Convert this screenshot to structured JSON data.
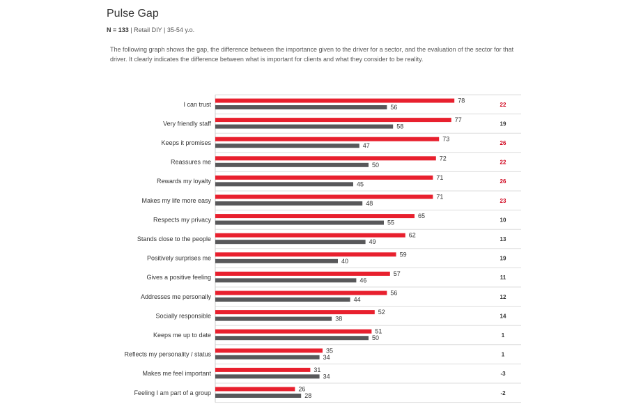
{
  "header": {
    "title": "Pulse Gap",
    "n_label": "N = ",
    "n_value": "133",
    "segment": " | Retail DIY | 35-54 y.o."
  },
  "description": "The following graph shows the gap, the difference between the importance given to the driver for a sector, and the evaluation of the sector for that driver. It clearly indicates the difference between what is important for clients and what they consider to be reality.",
  "colors": {
    "importance": "#e8202e",
    "evaluation": "#58585a",
    "gap_highlight": "#d0021b",
    "gap_normal": "#333333",
    "gridline": "#dddddd"
  },
  "chart_data": {
    "type": "bar",
    "orientation": "horizontal",
    "categories": [
      "I can trust",
      "Very friendly staff",
      "Keeps it promises",
      "Reassures me",
      "Rewards my loyalty",
      "Makes my life more easy",
      "Respects my privacy",
      "Stands close to the people",
      "Positively surprises me",
      "Gives a positive feeling",
      "Addresses me personally",
      "Socially responsible",
      "Keeps me up to date",
      "Reflects my personality / status",
      "Makes me feel important",
      "Feeling I am part of a group"
    ],
    "series": [
      {
        "values": [
          78,
          77,
          73,
          72,
          71,
          71,
          65,
          62,
          59,
          57,
          56,
          52,
          51,
          35,
          31,
          26
        ]
      },
      {
        "values": [
          56,
          58,
          47,
          50,
          45,
          48,
          55,
          49,
          40,
          46,
          44,
          38,
          50,
          34,
          34,
          28
        ]
      }
    ],
    "gap": [
      "22",
      "19",
      "26",
      "22",
      "26",
      "23",
      "10",
      "13",
      "19",
      "11",
      "12",
      "14",
      "1",
      "1",
      "-3",
      "-2"
    ],
    "gap_highlighted": [
      true,
      false,
      true,
      true,
      true,
      true,
      false,
      false,
      false,
      false,
      false,
      false,
      false,
      false,
      false,
      false
    ],
    "xlim": [
      0,
      100
    ],
    "grid": "horizontal row separators"
  }
}
